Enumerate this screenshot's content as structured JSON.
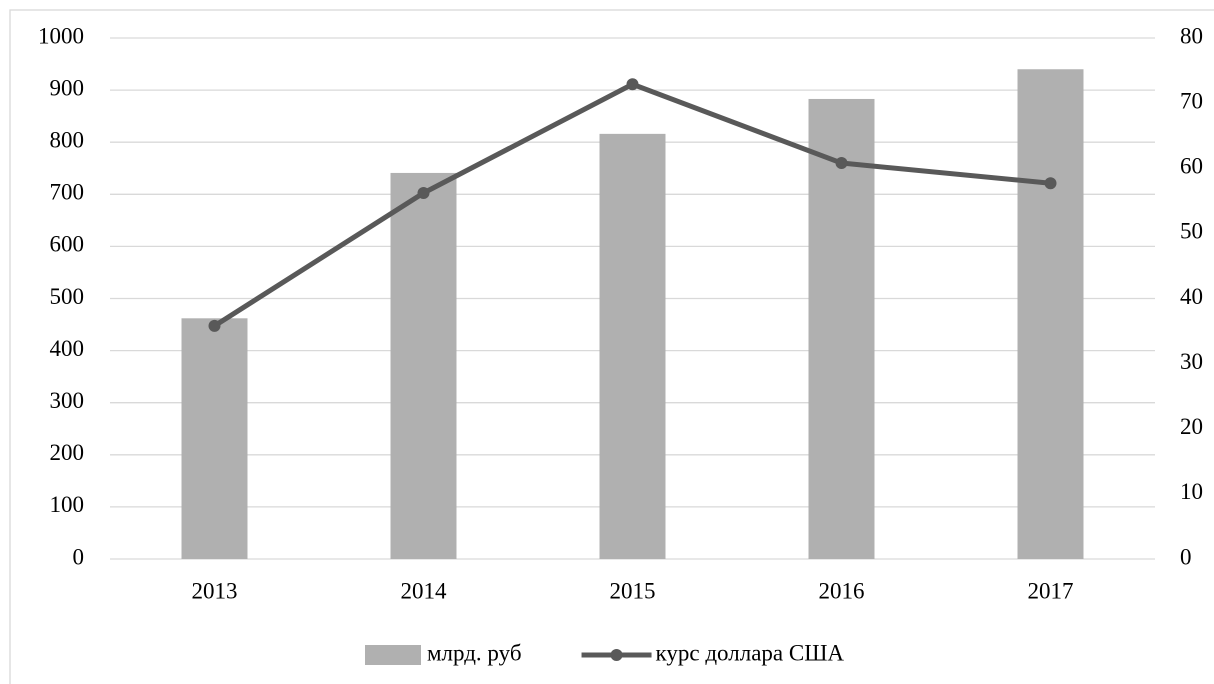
{
  "chart_data": {
    "type": "bar-line",
    "categories": [
      "2013",
      "2014",
      "2015",
      "2016",
      "2017"
    ],
    "series": [
      {
        "name": "млрд. руб",
        "type": "bar",
        "color": "#b0b0b0",
        "axis": "y",
        "values": [
          462,
          741,
          816,
          883,
          940
        ]
      },
      {
        "name": "курс доллара США",
        "type": "line",
        "color": "#595959",
        "axis": "y2",
        "values": [
          35.8,
          56.2,
          72.9,
          60.8,
          57.7
        ]
      }
    ],
    "ylim": [
      0,
      1000
    ],
    "yticks": [
      0,
      100,
      200,
      300,
      400,
      500,
      600,
      700,
      800,
      900,
      1000
    ],
    "y2lim": [
      0,
      80
    ],
    "y2ticks": [
      0,
      10,
      20,
      30,
      40,
      50,
      60,
      70,
      80
    ],
    "grid": true,
    "legend": "bottom"
  }
}
